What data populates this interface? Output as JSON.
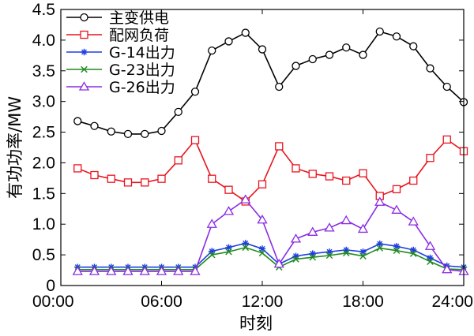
{
  "chart_data": {
    "type": "line",
    "xlabel": "时刻",
    "ylabel": "有功功率/MW",
    "xlim": [
      0,
      24
    ],
    "ylim": [
      0,
      4.5
    ],
    "x_ticks": [
      0,
      6,
      12,
      18,
      24
    ],
    "x_tick_labels": [
      "00:00",
      "06:00",
      "12:00",
      "18:00",
      "24:00"
    ],
    "y_ticks": [
      0,
      0.5,
      1.0,
      1.5,
      2.0,
      2.5,
      3.0,
      3.5,
      4.0,
      4.5
    ],
    "y_tick_labels": [
      "0",
      "0.5",
      "1.0",
      "1.5",
      "2.0",
      "2.5",
      "3.0",
      "3.5",
      "4.0",
      "4.5"
    ],
    "grid": false,
    "legend_position": "top-left",
    "x": [
      1,
      2,
      3,
      4,
      5,
      6,
      7,
      8,
      9,
      10,
      11,
      12,
      13,
      14,
      15,
      16,
      17,
      18,
      19,
      20,
      21,
      22,
      23,
      24
    ],
    "series": [
      {
        "name": "主变供电",
        "color": "#000000",
        "marker": "circle",
        "values": [
          2.68,
          2.6,
          2.51,
          2.47,
          2.47,
          2.52,
          2.83,
          3.16,
          3.83,
          3.98,
          4.12,
          3.85,
          3.24,
          3.58,
          3.69,
          3.76,
          3.88,
          3.76,
          4.14,
          4.06,
          3.9,
          3.54,
          3.24,
          2.99
        ]
      },
      {
        "name": "配网负荷",
        "color": "#e8141e",
        "marker": "square",
        "values": [
          1.91,
          1.8,
          1.74,
          1.68,
          1.68,
          1.74,
          2.04,
          2.37,
          1.74,
          1.56,
          1.37,
          1.65,
          2.27,
          1.91,
          1.82,
          1.78,
          1.71,
          1.83,
          1.46,
          1.57,
          1.71,
          2.08,
          2.38,
          2.19
        ]
      },
      {
        "name": "G-14出力",
        "color": "#1f3ee0",
        "marker": "asterisk",
        "values": [
          0.3,
          0.3,
          0.3,
          0.3,
          0.3,
          0.3,
          0.3,
          0.3,
          0.56,
          0.62,
          0.69,
          0.6,
          0.35,
          0.48,
          0.52,
          0.55,
          0.58,
          0.55,
          0.68,
          0.64,
          0.58,
          0.45,
          0.32,
          0.3
        ]
      },
      {
        "name": "G-23出力",
        "color": "#1e8a1e",
        "marker": "x",
        "values": [
          0.26,
          0.26,
          0.26,
          0.26,
          0.26,
          0.26,
          0.26,
          0.26,
          0.5,
          0.55,
          0.62,
          0.53,
          0.3,
          0.43,
          0.46,
          0.49,
          0.53,
          0.48,
          0.61,
          0.57,
          0.52,
          0.39,
          0.27,
          0.26
        ]
      },
      {
        "name": "G-26出力",
        "color": "#8a2be2",
        "marker": "triangle",
        "values": [
          0.23,
          0.23,
          0.23,
          0.23,
          0.23,
          0.23,
          0.23,
          0.23,
          1.0,
          1.21,
          1.4,
          1.07,
          0.35,
          0.76,
          0.87,
          0.94,
          1.06,
          0.92,
          1.36,
          1.23,
          1.04,
          0.64,
          0.26,
          0.23
        ]
      }
    ]
  }
}
